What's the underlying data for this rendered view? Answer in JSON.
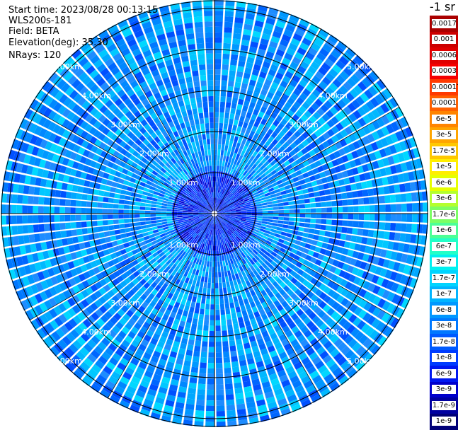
{
  "header": {
    "start_time": "Start time: 2023/08/28 00:13:15",
    "instrument": "WLS200s-181",
    "field": "Field: BETA",
    "elevation": "Elevation(deg): 35.30",
    "nrays": "NRays: 120"
  },
  "range_rings": {
    "labels": [
      "1.00km",
      "2.00km",
      "3.00km",
      "4.00km",
      "5.00km"
    ]
  },
  "colorbar": {
    "unit": "-1 sr",
    "levels": [
      {
        "label": "0.0017",
        "color": "#aa0000"
      },
      {
        "label": "0.001",
        "color": "#cc0000"
      },
      {
        "label": "0.0006",
        "color": "#e00000"
      },
      {
        "label": "0.0003",
        "color": "#f50000"
      },
      {
        "label": "0.00017",
        "color": "#ff3a00"
      },
      {
        "label": "0.0001",
        "color": "#ff6000"
      },
      {
        "label": "6e-5",
        "color": "#ff8400"
      },
      {
        "label": "3e-5",
        "color": "#ffa500"
      },
      {
        "label": "1.7e-5",
        "color": "#ffc800"
      },
      {
        "label": "1e-5",
        "color": "#ffee00"
      },
      {
        "label": "6e-6",
        "color": "#e6ff00"
      },
      {
        "label": "3e-6",
        "color": "#b4ff2e"
      },
      {
        "label": "1.7e-6",
        "color": "#7cff64"
      },
      {
        "label": "1e-6",
        "color": "#4cff96"
      },
      {
        "label": "6e-7",
        "color": "#22ffc8"
      },
      {
        "label": "3e-7",
        "color": "#00f0f0"
      },
      {
        "label": "1.7e-7",
        "color": "#00d4ff"
      },
      {
        "label": "1e-7",
        "color": "#00b4ff"
      },
      {
        "label": "6e-8",
        "color": "#0098ff"
      },
      {
        "label": "3e-8",
        "color": "#0078ff"
      },
      {
        "label": "1.7e-8",
        "color": "#005aff"
      },
      {
        "label": "1e-8",
        "color": "#003cff"
      },
      {
        "label": "6e-9",
        "color": "#0018f0"
      },
      {
        "label": "3e-9",
        "color": "#0000cc"
      },
      {
        "label": "1.7e-9",
        "color": "#0000a0"
      },
      {
        "label": "1e-9",
        "color": "#000078"
      }
    ]
  }
}
